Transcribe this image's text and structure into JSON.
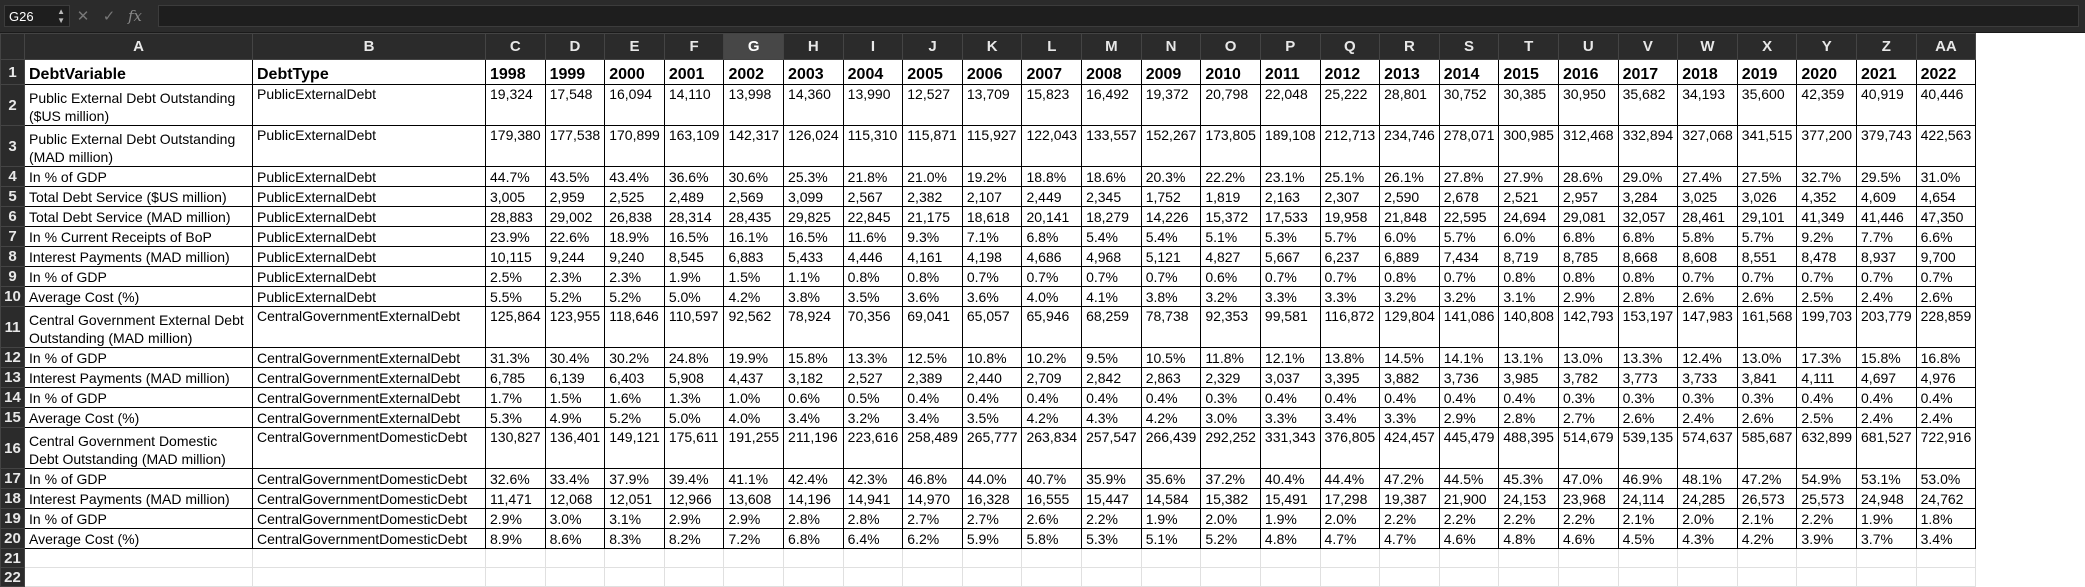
{
  "formula_bar": {
    "name_box": "G26",
    "cancel_icon": "✕",
    "enter_icon": "✓",
    "fx_label": "fx",
    "formula": ""
  },
  "grid": {
    "corner": "",
    "column_letters": [
      "A",
      "B",
      "C",
      "D",
      "E",
      "F",
      "G",
      "H",
      "I",
      "J",
      "K",
      "L",
      "M",
      "N",
      "O",
      "P",
      "Q",
      "R",
      "S",
      "T",
      "U",
      "V",
      "W",
      "X",
      "Y",
      "Z",
      "AA"
    ],
    "selected_column": "G",
    "header_row": [
      "DebtVariable",
      "DebtType",
      "1998",
      "1999",
      "2000",
      "2001",
      "2002",
      "2003",
      "2004",
      "2005",
      "2006",
      "2007",
      "2008",
      "2009",
      "2010",
      "2011",
      "2012",
      "2013",
      "2014",
      "2015",
      "2016",
      "2017",
      "2018",
      "2019",
      "2020",
      "2021",
      "2022"
    ],
    "rows": [
      {
        "num": "2",
        "tall": true,
        "a": "Public External Debt Outstanding ($US million)",
        "b": "PublicExternalDebt",
        "vals": [
          "19,324",
          "17,548",
          "16,094",
          "14,110",
          "13,998",
          "14,360",
          "13,990",
          "12,527",
          "13,709",
          "15,823",
          "16,492",
          "19,372",
          "20,798",
          "22,048",
          "25,222",
          "28,801",
          "30,752",
          "30,385",
          "30,950",
          "35,682",
          "34,193",
          "35,600",
          "42,359",
          "40,919",
          "40,446"
        ]
      },
      {
        "num": "3",
        "tall": true,
        "a": "Public External Debt Outstanding (MAD million)",
        "b": "PublicExternalDebt",
        "vals": [
          "179,380",
          "177,538",
          "170,899",
          "163,109",
          "142,317",
          "126,024",
          "115,310",
          "115,871",
          "115,927",
          "122,043",
          "133,557",
          "152,267",
          "173,805",
          "189,108",
          "212,713",
          "234,746",
          "278,071",
          "300,985",
          "312,468",
          "332,894",
          "327,068",
          "341,515",
          "377,200",
          "379,743",
          "422,563"
        ]
      },
      {
        "num": "4",
        "a": "In % of GDP",
        "b": "PublicExternalDebt",
        "vals": [
          "44.7%",
          "43.5%",
          "43.4%",
          "36.6%",
          "30.6%",
          "25.3%",
          "21.8%",
          "21.0%",
          "19.2%",
          "18.8%",
          "18.6%",
          "20.3%",
          "22.2%",
          "23.1%",
          "25.1%",
          "26.1%",
          "27.8%",
          "27.9%",
          "28.6%",
          "29.0%",
          "27.4%",
          "27.5%",
          "32.7%",
          "29.5%",
          "31.0%"
        ]
      },
      {
        "num": "5",
        "a": "Total Debt Service  ($US million)",
        "b": "PublicExternalDebt",
        "vals": [
          "3,005",
          "2,959",
          "2,525",
          "2,489",
          "2,569",
          "3,099",
          "2,567",
          "2,382",
          "2,107",
          "2,449",
          "2,345",
          "1,752",
          "1,819",
          "2,163",
          "2,307",
          "2,590",
          "2,678",
          "2,521",
          "2,957",
          "3,284",
          "3,025",
          "3,026",
          "4,352",
          "4,609",
          "4,654"
        ]
      },
      {
        "num": "6",
        "a": "Total Debt Service  (MAD million)",
        "b": "PublicExternalDebt",
        "vals": [
          "28,883",
          "29,002",
          "26,838",
          "28,314",
          "28,435",
          "29,825",
          "22,845",
          "21,175",
          "18,618",
          "20,141",
          "18,279",
          "14,226",
          "15,372",
          "17,533",
          "19,958",
          "21,848",
          "22,595",
          "24,694",
          "29,081",
          "32,057",
          "28,461",
          "29,101",
          "41,349",
          "41,446",
          "47,350"
        ]
      },
      {
        "num": "7",
        "a": "In % Current Receipts of BoP",
        "b": "PublicExternalDebt",
        "vals": [
          "23.9%",
          "22.6%",
          "18.9%",
          "16.5%",
          "16.1%",
          "16.5%",
          "11.6%",
          "9.3%",
          "7.1%",
          "6.8%",
          "5.4%",
          "5.4%",
          "5.1%",
          "5.3%",
          "5.7%",
          "6.0%",
          "5.7%",
          "6.0%",
          "6.8%",
          "6.8%",
          "5.8%",
          "5.7%",
          "9.2%",
          "7.7%",
          "6.6%"
        ]
      },
      {
        "num": "8",
        "a": "Interest Payments (MAD million)",
        "b": "PublicExternalDebt",
        "vals": [
          "10,115",
          "9,244",
          "9,240",
          "8,545",
          "6,883",
          "5,433",
          "4,446",
          "4,161",
          "4,198",
          "4,686",
          "4,968",
          "5,121",
          "4,827",
          "5,667",
          "6,237",
          "6,889",
          "7,434",
          "8,719",
          "8,785",
          "8,668",
          "8,608",
          "8,551",
          "8,478",
          "8,937",
          "9,700"
        ]
      },
      {
        "num": "9",
        "a": "In % of GDP",
        "b": "PublicExternalDebt",
        "vals": [
          "2.5%",
          "2.3%",
          "2.3%",
          "1.9%",
          "1.5%",
          "1.1%",
          "0.8%",
          "0.8%",
          "0.7%",
          "0.7%",
          "0.7%",
          "0.7%",
          "0.6%",
          "0.7%",
          "0.7%",
          "0.8%",
          "0.7%",
          "0.8%",
          "0.8%",
          "0.8%",
          "0.7%",
          "0.7%",
          "0.7%",
          "0.7%",
          "0.7%"
        ]
      },
      {
        "num": "10",
        "a": "Average Cost (%)",
        "b": "PublicExternalDebt",
        "vals": [
          "5.5%",
          "5.2%",
          "5.2%",
          "5.0%",
          "4.2%",
          "3.8%",
          "3.5%",
          "3.6%",
          "3.6%",
          "4.0%",
          "4.1%",
          "3.8%",
          "3.2%",
          "3.3%",
          "3.3%",
          "3.2%",
          "3.2%",
          "3.1%",
          "2.9%",
          "2.8%",
          "2.6%",
          "2.6%",
          "2.5%",
          "2.4%",
          "2.6%"
        ]
      },
      {
        "num": "11",
        "tall": true,
        "a": "Central Government External Debt Outstanding  (MAD million)",
        "b": "CentralGovernmentExternalDebt",
        "vals": [
          "125,864",
          "123,955",
          "118,646",
          "110,597",
          "92,562",
          "78,924",
          "70,356",
          "69,041",
          "65,057",
          "65,946",
          "68,259",
          "78,738",
          "92,353",
          "99,581",
          "116,872",
          "129,804",
          "141,086",
          "140,808",
          "142,793",
          "153,197",
          "147,983",
          "161,568",
          "199,703",
          "203,779",
          "228,859"
        ]
      },
      {
        "num": "12",
        "a": "In % of GDP",
        "b": "CentralGovernmentExternalDebt",
        "vals": [
          "31.3%",
          "30.4%",
          "30.2%",
          "24.8%",
          "19.9%",
          "15.8%",
          "13.3%",
          "12.5%",
          "10.8%",
          "10.2%",
          "9.5%",
          "10.5%",
          "11.8%",
          "12.1%",
          "13.8%",
          "14.5%",
          "14.1%",
          "13.1%",
          "13.0%",
          "13.3%",
          "12.4%",
          "13.0%",
          "17.3%",
          "15.8%",
          "16.8%"
        ]
      },
      {
        "num": "13",
        "a": "Interest Payments (MAD million)",
        "b": "CentralGovernmentExternalDebt",
        "vals": [
          "6,785",
          "6,139",
          "6,403",
          "5,908",
          "4,437",
          "3,182",
          "2,527",
          "2,389",
          "2,440",
          "2,709",
          "2,842",
          "2,863",
          "2,329",
          "3,037",
          "3,395",
          "3,882",
          "3,736",
          "3,985",
          "3,782",
          "3,773",
          "3,733",
          "3,841",
          "4,111",
          "4,697",
          "4,976"
        ]
      },
      {
        "num": "14",
        "a": "In % of GDP",
        "b": "CentralGovernmentExternalDebt",
        "vals": [
          "1.7%",
          "1.5%",
          "1.6%",
          "1.3%",
          "1.0%",
          "0.6%",
          "0.5%",
          "0.4%",
          "0.4%",
          "0.4%",
          "0.4%",
          "0.4%",
          "0.3%",
          "0.4%",
          "0.4%",
          "0.4%",
          "0.4%",
          "0.4%",
          "0.3%",
          "0.3%",
          "0.3%",
          "0.3%",
          "0.4%",
          "0.4%",
          "0.4%"
        ]
      },
      {
        "num": "15",
        "a": "Average Cost (%)",
        "b": "CentralGovernmentExternalDebt",
        "vals": [
          "5.3%",
          "4.9%",
          "5.2%",
          "5.0%",
          "4.0%",
          "3.4%",
          "3.2%",
          "3.4%",
          "3.5%",
          "4.2%",
          "4.3%",
          "4.2%",
          "3.0%",
          "3.3%",
          "3.4%",
          "3.3%",
          "2.9%",
          "2.8%",
          "2.7%",
          "2.6%",
          "2.4%",
          "2.6%",
          "2.5%",
          "2.4%",
          "2.4%"
        ]
      },
      {
        "num": "16",
        "tall": true,
        "a": "Central Government Domestic Debt Outstanding (MAD million)",
        "b": "CentralGovernmentDomesticDebt",
        "vals": [
          "130,827",
          "136,401",
          "149,121",
          "175,611",
          "191,255",
          "211,196",
          "223,616",
          "258,489",
          "265,777",
          "263,834",
          "257,547",
          "266,439",
          "292,252",
          "331,343",
          "376,805",
          "424,457",
          "445,479",
          "488,395",
          "514,679",
          "539,135",
          "574,637",
          "585,687",
          "632,899",
          "681,527",
          "722,916"
        ]
      },
      {
        "num": "17",
        "a": "In % of GDP",
        "b": "CentralGovernmentDomesticDebt",
        "vals": [
          "32.6%",
          "33.4%",
          "37.9%",
          "39.4%",
          "41.1%",
          "42.4%",
          "42.3%",
          "46.8%",
          "44.0%",
          "40.7%",
          "35.9%",
          "35.6%",
          "37.2%",
          "40.4%",
          "44.4%",
          "47.2%",
          "44.5%",
          "45.3%",
          "47.0%",
          "46.9%",
          "48.1%",
          "47.2%",
          "54.9%",
          "53.1%",
          "53.0%"
        ]
      },
      {
        "num": "18",
        "a": "Interest Payments (MAD million)",
        "b": "CentralGovernmentDomesticDebt",
        "vals": [
          "11,471",
          "12,068",
          "12,051",
          "12,966",
          "13,608",
          "14,196",
          "14,941",
          "14,970",
          "16,328",
          "16,555",
          "15,447",
          "14,584",
          "15,382",
          "15,491",
          "17,298",
          "19,387",
          "21,900",
          "24,153",
          "23,968",
          "24,114",
          "24,285",
          "26,573",
          "25,573",
          "24,948",
          "24,762"
        ]
      },
      {
        "num": "19",
        "a": "In % of GDP",
        "b": "CentralGovernmentDomesticDebt",
        "vals": [
          "2.9%",
          "3.0%",
          "3.1%",
          "2.9%",
          "2.9%",
          "2.8%",
          "2.8%",
          "2.7%",
          "2.7%",
          "2.6%",
          "2.2%",
          "1.9%",
          "2.0%",
          "1.9%",
          "2.0%",
          "2.2%",
          "2.2%",
          "2.2%",
          "2.2%",
          "2.1%",
          "2.0%",
          "2.1%",
          "2.2%",
          "1.9%",
          "1.8%"
        ]
      },
      {
        "num": "20",
        "a": "Average Cost (%)",
        "b": "CentralGovernmentDomesticDebt",
        "vals": [
          "8.9%",
          "8.6%",
          "8.3%",
          "8.2%",
          "7.2%",
          "6.8%",
          "6.4%",
          "6.2%",
          "5.9%",
          "5.8%",
          "5.3%",
          "5.1%",
          "5.2%",
          "4.8%",
          "4.7%",
          "4.7%",
          "4.6%",
          "4.8%",
          "4.6%",
          "4.5%",
          "4.3%",
          "4.2%",
          "3.9%",
          "3.7%",
          "3.4%"
        ]
      }
    ],
    "empty_rows": [
      "21",
      "22"
    ]
  }
}
